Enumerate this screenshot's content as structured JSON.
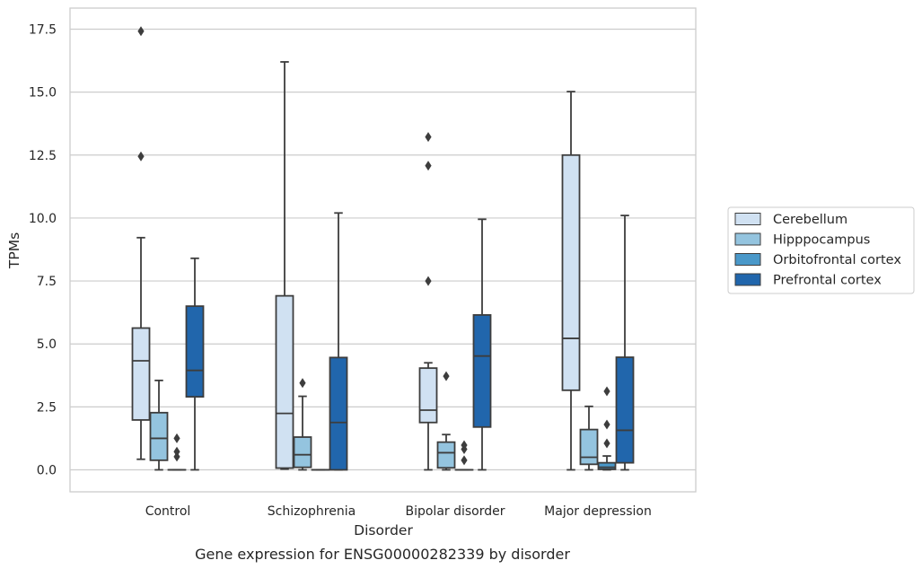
{
  "chart_data": {
    "type": "box",
    "title": "",
    "caption": "Gene expression for ENSG00000282339 by disorder",
    "xlabel": "Disorder",
    "ylabel": "TPMs",
    "ylim": [
      -0.85,
      18.3
    ],
    "yticks": [
      0.0,
      2.5,
      5.0,
      7.5,
      10.0,
      12.5,
      15.0,
      17.5
    ],
    "ytick_labels": [
      "0.0",
      "2.5",
      "5.0",
      "7.5",
      "10.0",
      "12.5",
      "15.0",
      "17.5"
    ],
    "grid": "horizontal",
    "legend_position": "right",
    "categories": [
      "Control",
      "Schizophrenia",
      "Bipolar disorder",
      "Major depression"
    ],
    "series": [
      {
        "name": "Cerebellum",
        "color": "#d0e1f2",
        "boxes": [
          {
            "whisker_low": 0.42,
            "q1": 1.98,
            "median": 4.33,
            "q3": 5.63,
            "whisker_high": 9.22,
            "outliers": [
              12.45,
              17.42
            ]
          },
          {
            "whisker_low": 0.03,
            "q1": 0.07,
            "median": 2.24,
            "q3": 6.91,
            "whisker_high": 16.2,
            "outliers": []
          },
          {
            "whisker_low": 0.0,
            "q1": 1.88,
            "median": 2.37,
            "q3": 4.04,
            "whisker_high": 4.25,
            "outliers": [
              7.5,
              12.08,
              13.22
            ]
          },
          {
            "whisker_low": 0.0,
            "q1": 3.16,
            "median": 5.22,
            "q3": 12.5,
            "whisker_high": 15.02,
            "outliers": []
          }
        ]
      },
      {
        "name": "Hipppocampus",
        "color": "#94c4df",
        "boxes": [
          {
            "whisker_low": 0.0,
            "q1": 0.38,
            "median": 1.25,
            "q3": 2.27,
            "whisker_high": 3.55,
            "outliers": []
          },
          {
            "whisker_low": 0.0,
            "q1": 0.1,
            "median": 0.6,
            "q3": 1.3,
            "whisker_high": 2.92,
            "outliers": [
              3.45
            ]
          },
          {
            "whisker_low": 0.0,
            "q1": 0.08,
            "median": 0.68,
            "q3": 1.1,
            "whisker_high": 1.4,
            "outliers": [
              3.72
            ]
          },
          {
            "whisker_low": 0.0,
            "q1": 0.22,
            "median": 0.5,
            "q3": 1.6,
            "whisker_high": 2.52,
            "outliers": []
          }
        ]
      },
      {
        "name": "Orbitofrontal cortex",
        "color": "#4a98c9",
        "boxes": [
          {
            "whisker_low": 0.0,
            "q1": 0.0,
            "median": 0.0,
            "q3": 0.0,
            "whisker_high": 0.0,
            "outliers": [
              0.52,
              0.72,
              1.25
            ]
          },
          {
            "whisker_low": 0.0,
            "q1": 0.0,
            "median": 0.0,
            "q3": 0.0,
            "whisker_high": 0.0,
            "outliers": []
          },
          {
            "whisker_low": 0.0,
            "q1": 0.0,
            "median": 0.0,
            "q3": 0.0,
            "whisker_high": 0.0,
            "outliers": [
              0.38,
              0.82,
              0.98
            ]
          },
          {
            "whisker_low": 0.0,
            "q1": 0.02,
            "median": 0.1,
            "q3": 0.28,
            "whisker_high": 0.55,
            "outliers": [
              1.05,
              1.8,
              3.12
            ]
          }
        ]
      },
      {
        "name": "Prefrontal cortex",
        "color": "#2166ac",
        "boxes": [
          {
            "whisker_low": 0.0,
            "q1": 2.9,
            "median": 3.95,
            "q3": 6.5,
            "whisker_high": 8.4,
            "outliers": []
          },
          {
            "whisker_low": 0.0,
            "q1": 0.0,
            "median": 1.88,
            "q3": 4.46,
            "whisker_high": 10.2,
            "outliers": []
          },
          {
            "whisker_low": 0.0,
            "q1": 1.7,
            "median": 4.52,
            "q3": 6.15,
            "whisker_high": 9.95,
            "outliers": []
          },
          {
            "whisker_low": 0.0,
            "q1": 0.28,
            "median": 1.57,
            "q3": 4.47,
            "whisker_high": 10.1,
            "outliers": []
          }
        ]
      }
    ]
  }
}
